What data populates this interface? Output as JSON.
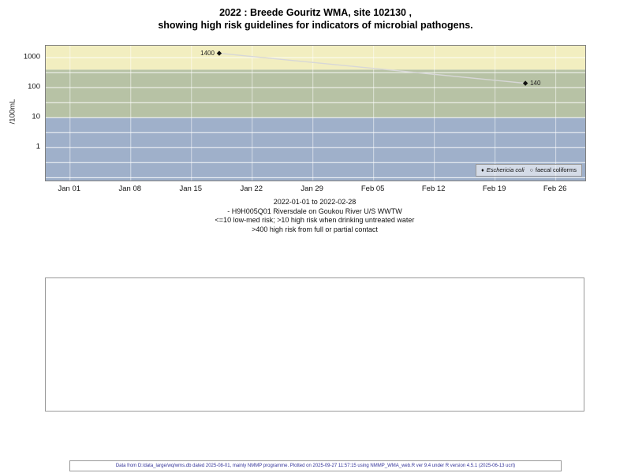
{
  "title": {
    "line1": "2022 : Breede Gouritz WMA, site 102130 ,",
    "line2": "showing high risk guidelines for indicators of microbial pathogens."
  },
  "chart_data": {
    "type": "line",
    "title": "2022 : Breede Gouritz WMA, site 102130, showing high risk guidelines for indicators of microbial pathogens",
    "ylabel": "/100mL",
    "xlabel": "",
    "y_scale": "log10",
    "ylim": [
      0.08,
      2500
    ],
    "y_ticks": [
      1,
      10,
      100,
      1000
    ],
    "y_gridlines": [
      0.1,
      0.316,
      1,
      3.16,
      10,
      31.6,
      100,
      316,
      1000
    ],
    "xlim_days": [
      -2.8,
      59.4
    ],
    "x_ticks": [
      {
        "day": 0,
        "label": "Jan 01"
      },
      {
        "day": 7,
        "label": "Jan 08"
      },
      {
        "day": 14,
        "label": "Jan 15"
      },
      {
        "day": 21,
        "label": "Jan 22"
      },
      {
        "day": 28,
        "label": "Jan 29"
      },
      {
        "day": 35,
        "label": "Feb 05"
      },
      {
        "day": 42,
        "label": "Feb 12"
      },
      {
        "day": 49,
        "label": "Feb 19"
      },
      {
        "day": 56,
        "label": "Feb 26"
      }
    ],
    "bands": [
      {
        "name": "low-med-risk",
        "from": 0.08,
        "to": 10,
        "color": "#9fb0ca"
      },
      {
        "name": "high-risk-drinking",
        "from": 10,
        "to": 400,
        "color": "#b7c2a5"
      },
      {
        "name": "high-risk-contact",
        "from": 400,
        "to": 2500,
        "color": "#f2eec0"
      }
    ],
    "grid_color": "#ffffff",
    "line_color": "#d7d7d7",
    "series": [
      {
        "name": "Eschericia coli",
        "marker": "diamond",
        "italic": true,
        "points": [
          {
            "day": 17.2,
            "value": 1400,
            "label": "1400",
            "label_pos": "left"
          },
          {
            "day": 52.5,
            "value": 140,
            "label": "140",
            "label_pos": "right"
          }
        ]
      },
      {
        "name": "faecal coliforms",
        "marker": "circle",
        "italic": false,
        "points": []
      }
    ],
    "legend": [
      {
        "marker": "♦",
        "label": "Eschericia coli",
        "italic": true
      },
      {
        "marker": "○",
        "label": "faecal coliforms",
        "italic": false
      }
    ],
    "legend_position": "bottom-right-inside"
  },
  "caption": {
    "line1": "2022-01-01 to 2022-02-28",
    "line2": "- H9H005Q01 Riversdale on Goukou River U/S WWTW",
    "line3": "<=10 low-med risk; >10 high risk when drinking untreated water",
    "line4": ">400 high risk from full or partial contact"
  },
  "footer": "Data from D:/data_large/wq/wms.db dated 2025-08-01, mainly NMMP programme. Plotted on 2025-09-27 11:57:15 using NMMP_WMA_web.R ver 9.4 under R version 4.5.1 (2025-06-13 ucrt)"
}
